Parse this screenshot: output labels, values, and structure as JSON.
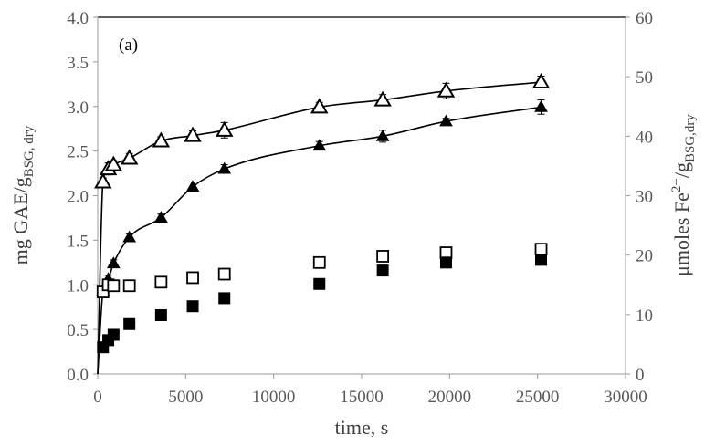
{
  "chart_data": {
    "type": "scatter",
    "panel_label": "(a)",
    "xlabel": "time, s",
    "ylabel_left": {
      "main": "mg GAE/g",
      "sub": "BSG, dry"
    },
    "ylabel_right": {
      "pre": "μmoles Fe",
      "sup": "2+",
      "mid": "/g",
      "sub": "BSG,dry"
    },
    "xlim": [
      0,
      30000
    ],
    "ylim_left": [
      0,
      4.0
    ],
    "ylim_right": [
      0,
      60
    ],
    "x_ticks": [
      "0",
      "5000",
      "10000",
      "15000",
      "20000",
      "25000",
      "30000"
    ],
    "y_left_ticks": [
      "0.0",
      "0.5",
      "1.0",
      "1.5",
      "2.0",
      "2.5",
      "3.0",
      "3.5",
      "4.0"
    ],
    "y_right_ticks": [
      "0",
      "10",
      "20",
      "30",
      "40",
      "50",
      "60"
    ],
    "grid": false,
    "series": [
      {
        "marker": "open-triangle",
        "axis": "right",
        "x": [
          300,
          600,
          900,
          1800,
          3600,
          5400,
          7200,
          12600,
          16200,
          19800,
          25200
        ],
        "y": [
          32.3,
          34.5,
          35.2,
          36.3,
          39.2,
          40.1,
          41.0,
          44.9,
          46.1,
          47.6,
          49.1
        ],
        "err": [
          0.7,
          1.0,
          0.7,
          0.8,
          0.7,
          0.8,
          1.3,
          0.8,
          0.9,
          1.3,
          1.0
        ],
        "fit": true
      },
      {
        "marker": "filled-triangle",
        "axis": "right",
        "x": [
          300,
          600,
          900,
          1800,
          3600,
          5400,
          7200,
          12600,
          16200,
          19800,
          25200
        ],
        "y": [
          14.0,
          16.0,
          18.6,
          23.0,
          26.3,
          31.5,
          34.5,
          38.4,
          40.0,
          42.5,
          44.9
        ],
        "err": [
          0.5,
          0.6,
          0.6,
          0.6,
          0.6,
          0.8,
          0.7,
          0.7,
          1.0,
          0.5,
          1.2
        ],
        "fit": true
      },
      {
        "marker": "open-square",
        "axis": "left",
        "x": [
          300,
          600,
          900,
          1800,
          3600,
          5400,
          7200,
          12600,
          16200,
          19800,
          25200
        ],
        "y": [
          0.92,
          1.0,
          0.99,
          0.99,
          1.03,
          1.08,
          1.12,
          1.25,
          1.32,
          1.36,
          1.4
        ],
        "err": [
          0.03,
          0.03,
          0.03,
          0.02,
          0.03,
          0.03,
          0.03,
          0.03,
          0.03,
          0.04,
          0.03
        ]
      },
      {
        "marker": "filled-square",
        "axis": "left",
        "x": [
          300,
          600,
          900,
          1800,
          3600,
          5400,
          7200,
          12600,
          16200,
          19800,
          25200
        ],
        "y": [
          0.3,
          0.38,
          0.44,
          0.56,
          0.66,
          0.76,
          0.85,
          1.01,
          1.16,
          1.25,
          1.28
        ],
        "err": [
          0.01,
          0.01,
          0.01,
          0.01,
          0.01,
          0.01,
          0.01,
          0.01,
          0.01,
          0.01,
          0.01
        ]
      }
    ]
  }
}
